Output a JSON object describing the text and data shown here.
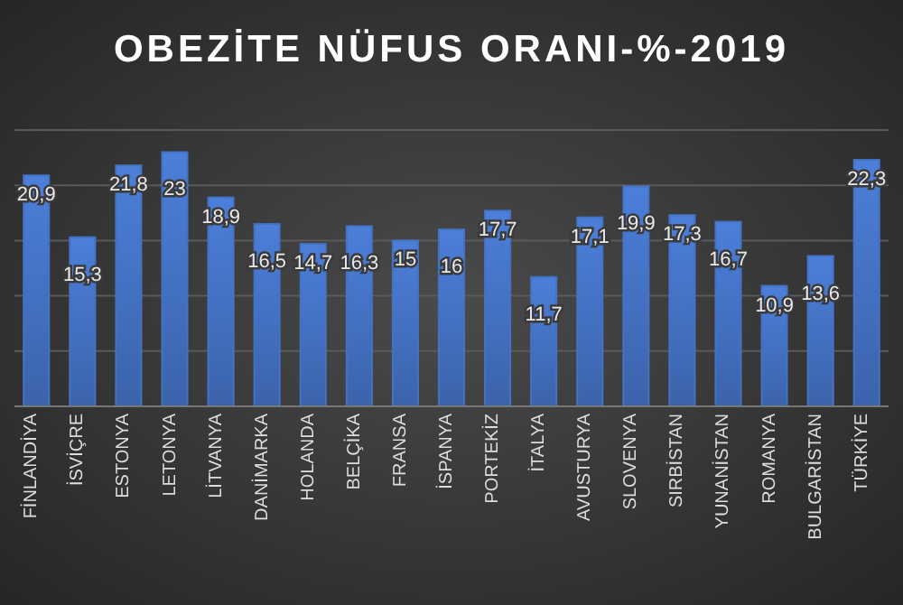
{
  "chart_data": {
    "type": "bar",
    "title": "OBEZİTE NÜFUS ORANI-%-2019",
    "categories": [
      "FİNLANDİYA",
      "İSVİÇRE",
      "ESTONYA",
      "LETONYA",
      "LİTVANYA",
      "DANİMARKA",
      "HOLANDA",
      "BELÇİKA",
      "FRANSA",
      "İSPANYA",
      "PORTEKİZ",
      "İTALYA",
      "AVUSTURYA",
      "SLOVENYA",
      "SIRBİSTAN",
      "YUNANİSTAN",
      "ROMANYA",
      "BULGARİSTAN",
      "TÜRKİYE"
    ],
    "values": [
      20.9,
      15.3,
      21.8,
      23,
      18.9,
      16.5,
      14.7,
      16.3,
      15,
      16,
      17.7,
      11.7,
      17.1,
      19.9,
      17.3,
      16.7,
      10.9,
      13.6,
      22.3
    ],
    "value_labels": [
      "20,9",
      "15,3",
      "21,8",
      "23",
      "18,9",
      "16,5",
      "14,7",
      "16,3",
      "15",
      "16",
      "17,7",
      "11,7",
      "17,1",
      "19,9",
      "17,3",
      "16,7",
      "10,9",
      "13,6",
      "22,3"
    ],
    "color": "#4472c4",
    "ylim": [
      0,
      25
    ],
    "yticks": [
      {
        "value": 0,
        "label": null
      },
      {
        "value": 5,
        "label": null
      },
      {
        "value": 10,
        "label": null
      },
      {
        "value": 15,
        "label": null
      },
      {
        "value": 20,
        "label": null
      },
      {
        "value": 25,
        "label": null
      }
    ],
    "grid": "y"
  }
}
